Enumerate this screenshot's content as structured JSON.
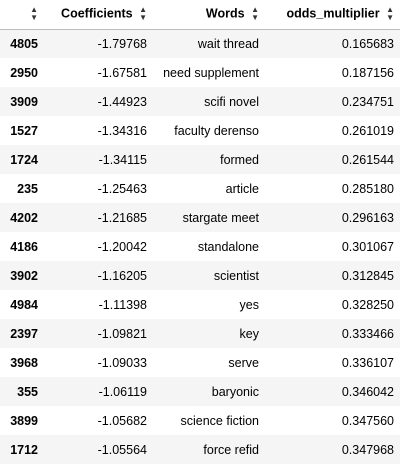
{
  "table": {
    "columns": [
      {
        "key": "index",
        "label": ""
      },
      {
        "key": "coefficients",
        "label": "Coefficients"
      },
      {
        "key": "words",
        "label": "Words"
      },
      {
        "key": "odds_multiplier",
        "label": "odds_multiplier"
      }
    ],
    "rows": [
      {
        "index": "4805",
        "coefficients": "-1.79768",
        "words": "wait thread",
        "odds_multiplier": "0.165683"
      },
      {
        "index": "2950",
        "coefficients": "-1.67581",
        "words": "need supplement",
        "odds_multiplier": "0.187156"
      },
      {
        "index": "3909",
        "coefficients": "-1.44923",
        "words": "scifi novel",
        "odds_multiplier": "0.234751"
      },
      {
        "index": "1527",
        "coefficients": "-1.34316",
        "words": "faculty derenso",
        "odds_multiplier": "0.261019"
      },
      {
        "index": "1724",
        "coefficients": "-1.34115",
        "words": "formed",
        "odds_multiplier": "0.261544"
      },
      {
        "index": "235",
        "coefficients": "-1.25463",
        "words": "article",
        "odds_multiplier": "0.285180"
      },
      {
        "index": "4202",
        "coefficients": "-1.21685",
        "words": "stargate meet",
        "odds_multiplier": "0.296163"
      },
      {
        "index": "4186",
        "coefficients": "-1.20042",
        "words": "standalone",
        "odds_multiplier": "0.301067"
      },
      {
        "index": "3902",
        "coefficients": "-1.16205",
        "words": "scientist",
        "odds_multiplier": "0.312845"
      },
      {
        "index": "4984",
        "coefficients": "-1.11398",
        "words": "yes",
        "odds_multiplier": "0.328250"
      },
      {
        "index": "2397",
        "coefficients": "-1.09821",
        "words": "key",
        "odds_multiplier": "0.333466"
      },
      {
        "index": "3968",
        "coefficients": "-1.09033",
        "words": "serve",
        "odds_multiplier": "0.336107"
      },
      {
        "index": "355",
        "coefficients": "-1.06119",
        "words": "baryonic",
        "odds_multiplier": "0.346042"
      },
      {
        "index": "3899",
        "coefficients": "-1.05682",
        "words": "science fiction",
        "odds_multiplier": "0.347560"
      },
      {
        "index": "1712",
        "coefficients": "-1.05564",
        "words": "force refid",
        "odds_multiplier": "0.347968"
      }
    ]
  },
  "icons": {
    "sort": "sort-up-down-icon"
  },
  "colors": {
    "row_striped": "#f5f5f5",
    "row_plain": "#ffffff",
    "header_border": "#bdbdbd"
  }
}
